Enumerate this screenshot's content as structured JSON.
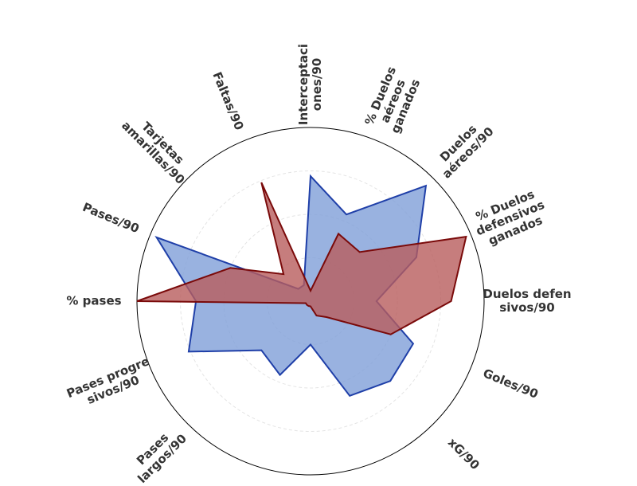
{
  "chart_data": {
    "type": "radar",
    "categories": [
      "Interceptaci\nones/90",
      "% Duelos\naéreos\nganados",
      "Duelos\naéreos/90",
      "% Duelos\ndefensivos\nganados",
      "Duelos defen\nsivos/90",
      "Goles/90",
      "xG/90",
      null,
      null,
      null,
      "Pases\nlargos/90",
      "Pases progre\nsivos/90",
      "% pases",
      "Pases/90",
      "Tarjetas\namarillas/90",
      "Faltas/90"
    ],
    "series": [
      {
        "color": "#1f3fa8",
        "fill": "#7f9fd8",
        "values": [
          72,
          54,
          94,
          66,
          38,
          64,
          65,
          59,
          25,
          46,
          40,
          76,
          66,
          96,
          10,
          10
        ]
      },
      {
        "color": "#7a0a0a",
        "fill": "#b85c5c",
        "values": [
          6,
          42,
          40,
          97,
          81,
          50,
          13,
          9,
          3,
          3,
          3,
          3,
          100,
          50,
          22,
          74
        ]
      }
    ],
    "rlim": [
      0,
      100
    ],
    "rticks": [
      25,
      50,
      75
    ],
    "grid": true
  }
}
